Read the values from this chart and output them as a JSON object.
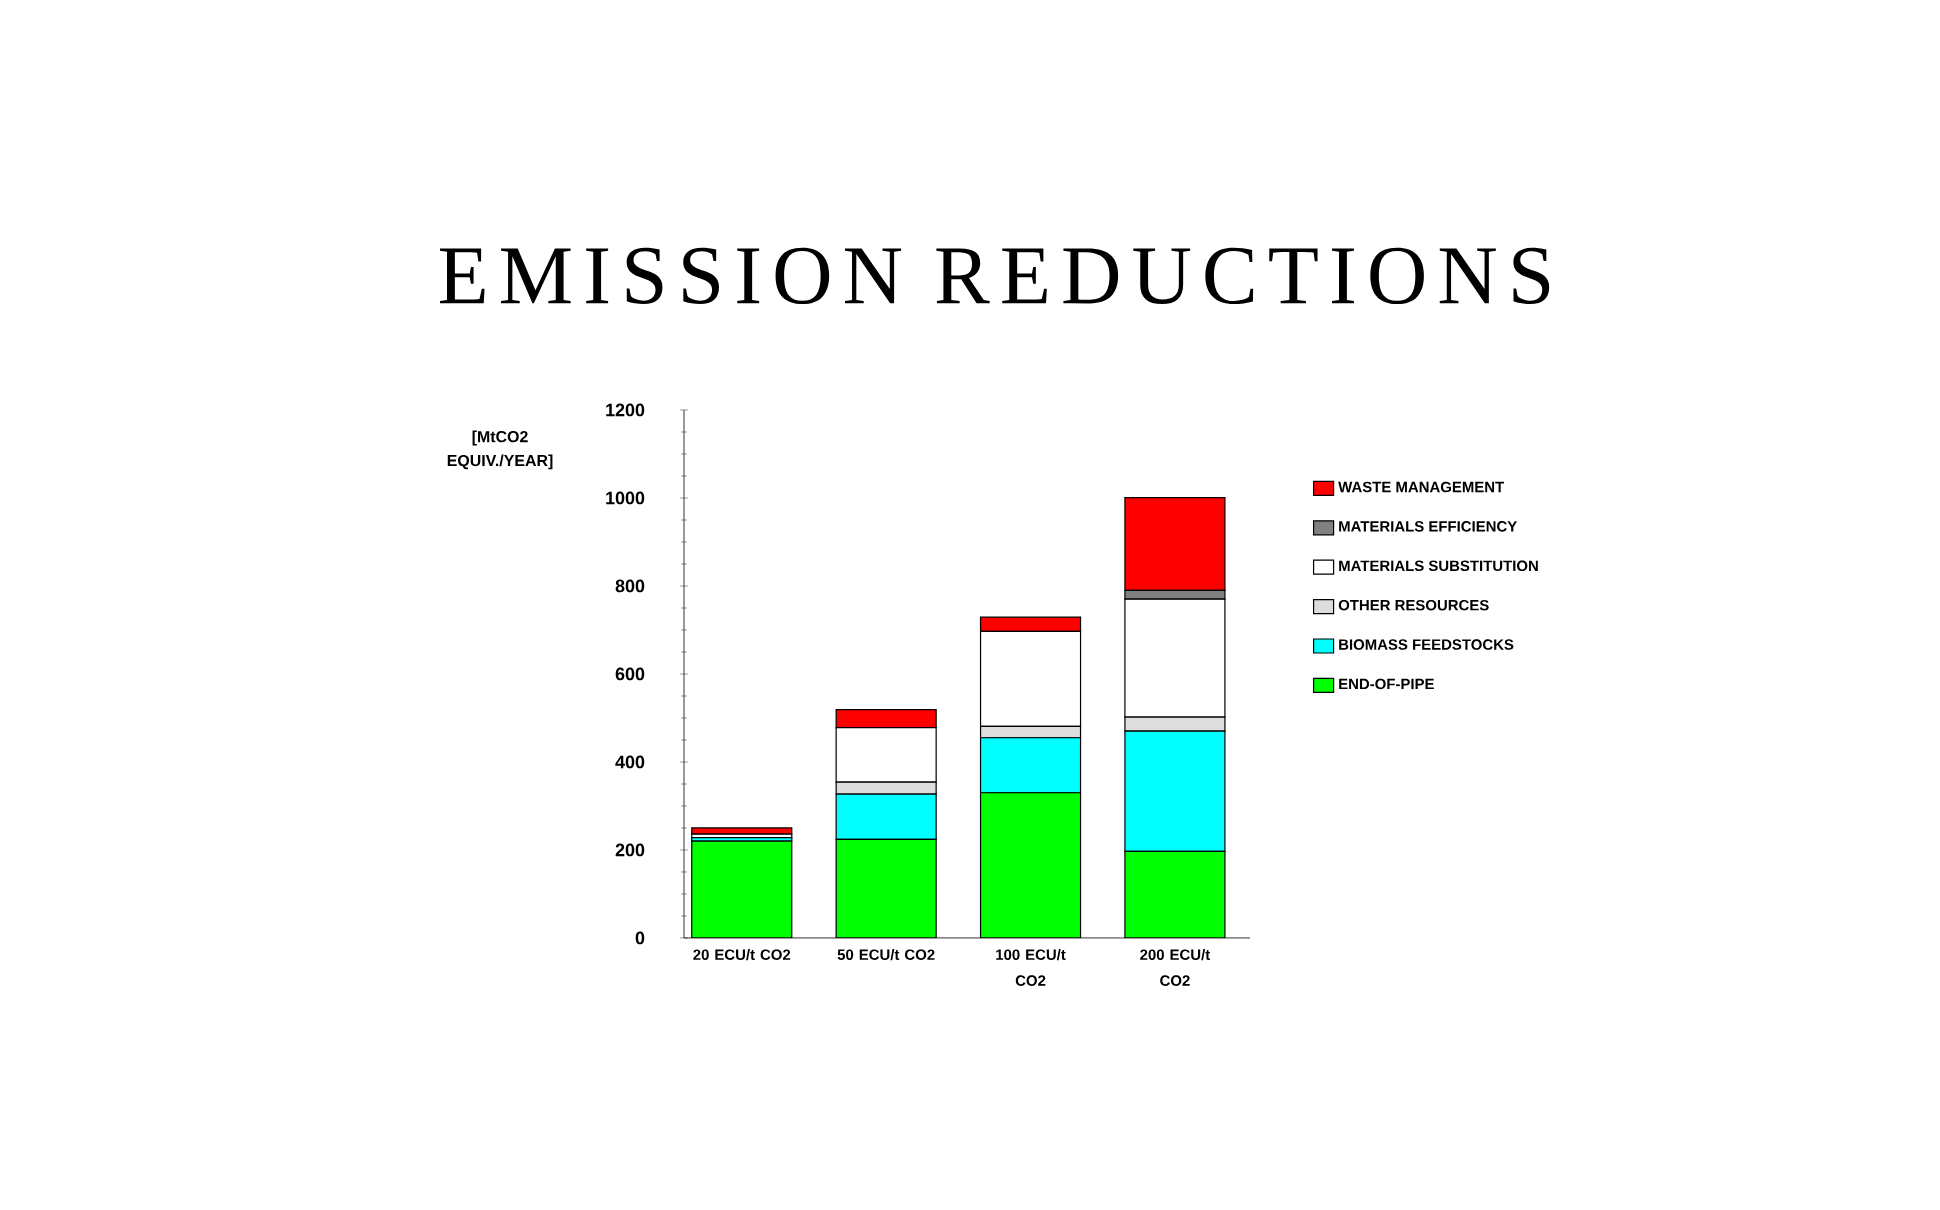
{
  "chart_data": {
    "type": "bar",
    "title": "EMISSION REDUCTIONS",
    "ylabel": "[MtCO2 EQUIV./YEAR]",
    "stacked": true,
    "categories": [
      "20 ECU/t CO2",
      "50 ECU/t CO2",
      "100 ECU/t CO2",
      "200 ECU/t CO2"
    ],
    "ylim": [
      0,
      1200
    ],
    "yticks": [
      0,
      200,
      400,
      600,
      800,
      1000,
      1200
    ],
    "legend": "right",
    "series": [
      {
        "name": "END-OF-PIPE",
        "color": "#00ff00",
        "values": [
          220,
          224,
          330,
          197
        ]
      },
      {
        "name": "BIOMASS FEEDSTOCKS",
        "color": "#00ffff",
        "values": [
          8,
          103,
          125,
          273
        ]
      },
      {
        "name": "OTHER RESOURCES",
        "color": "#dddddd",
        "values": [
          0,
          27,
          26,
          32
        ]
      },
      {
        "name": "MATERIALS SUBSTITUTION",
        "color": "#ffffff",
        "values": [
          8,
          124,
          216,
          268
        ]
      },
      {
        "name": "MATERIALS EFFICIENCY",
        "color": "#808080",
        "values": [
          0,
          0,
          0,
          20
        ]
      },
      {
        "name": "WASTE MANAGEMENT",
        "color": "#ff0000",
        "values": [
          14,
          41,
          32,
          211
        ]
      }
    ]
  }
}
